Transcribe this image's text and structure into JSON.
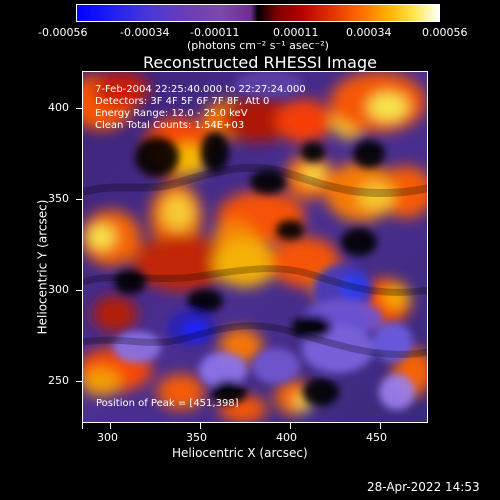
{
  "colorbar": {
    "ticks": [
      "-0.00056",
      "-0.00034",
      "-0.00011",
      "0.00011",
      "0.00034",
      "0.00056"
    ],
    "unit": "(photons cm⁻² s⁻¹ asec⁻²)"
  },
  "title": "Reconstructed RHESSI Image",
  "info": {
    "line1": "7-Feb-2004 22:25:40.000 to 22:27:24.000",
    "line2": "Detectors: 3F 4F 5F 6F 7F 8F, Att 0",
    "line3": "Energy Range: 12.0 - 25.0 keV",
    "line4": "Clean    Total Counts: 1.54E+03"
  },
  "peak": "Position of Peak = [451,398]",
  "axes": {
    "xlabel": "Heliocentric X (arcsec)",
    "ylabel": "Heliocentric Y (arcsec)",
    "xticks": [
      "300",
      "350",
      "400",
      "450"
    ],
    "yticks": [
      "250",
      "300",
      "350",
      "400"
    ]
  },
  "timestamp": "28-Apr-2022 14:53"
}
